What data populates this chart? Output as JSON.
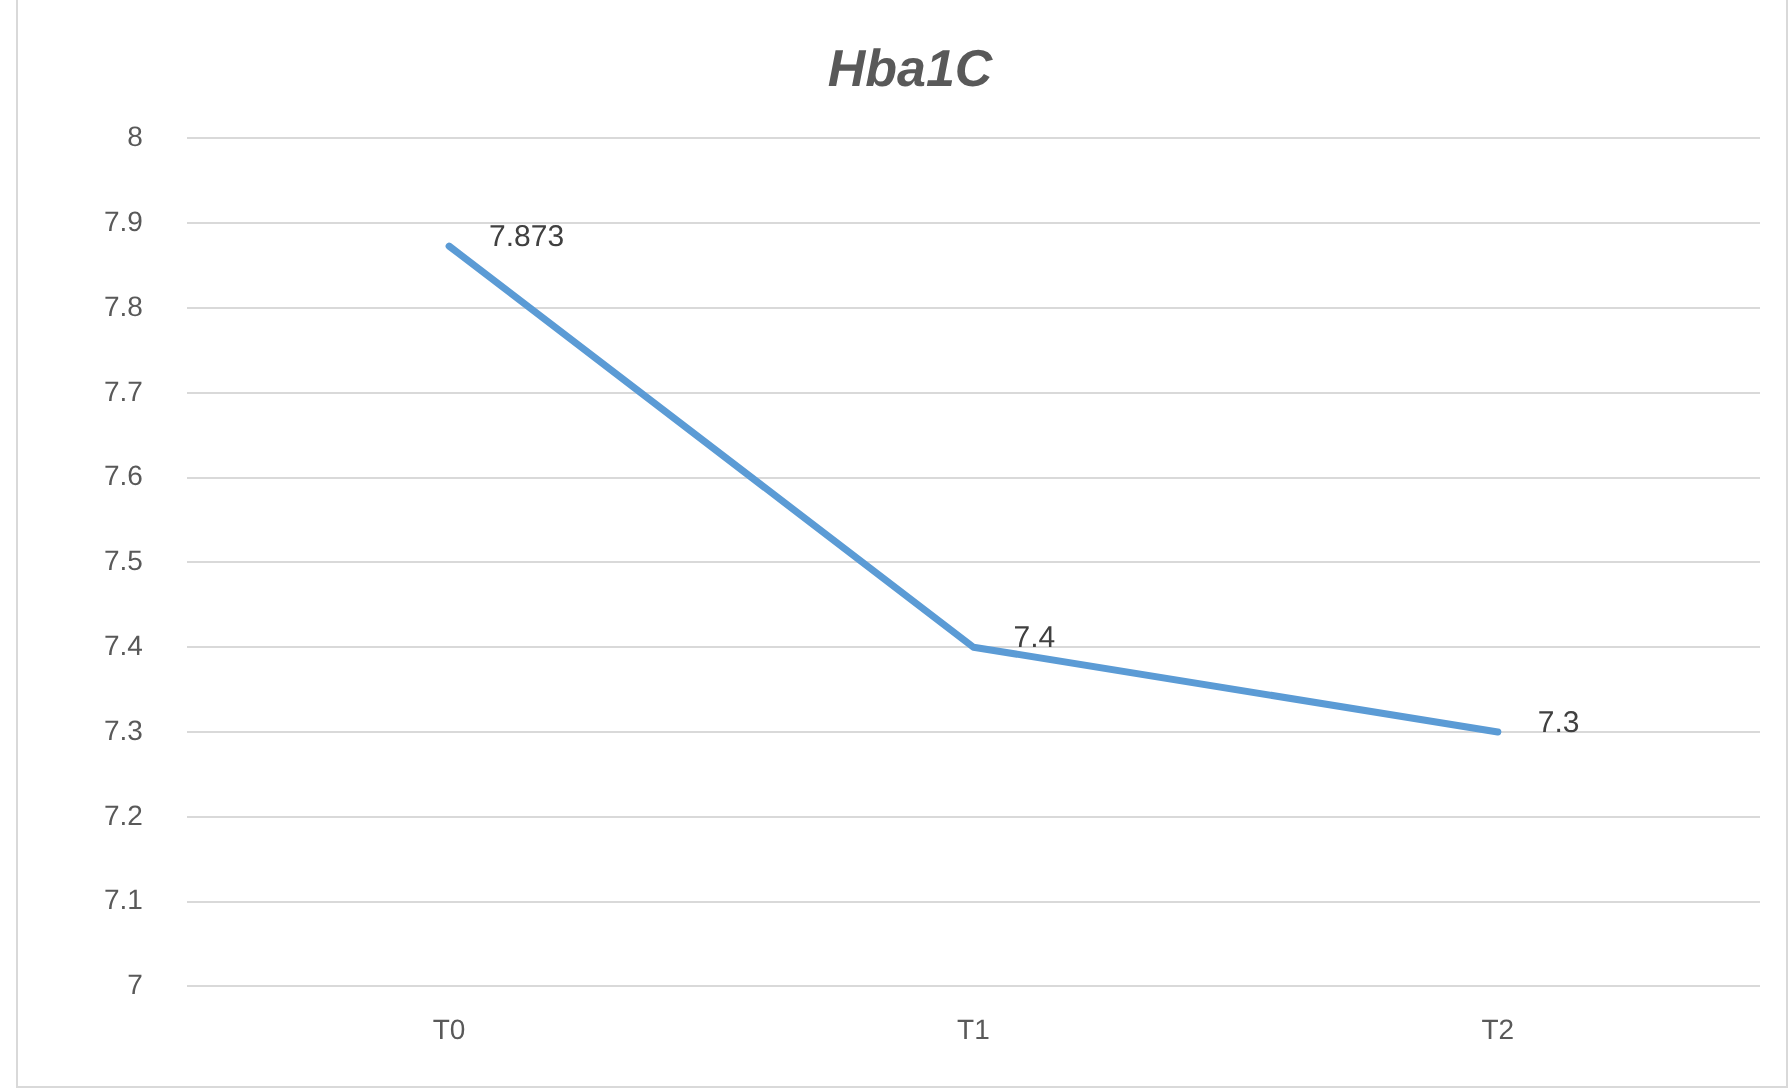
{
  "chart_data": {
    "type": "line",
    "title": "Hba1C",
    "categories": [
      "T0",
      "T1",
      "T2"
    ],
    "series": [
      {
        "color": "#5b9bd5",
        "values": [
          7.873,
          7.4,
          7.3
        ]
      }
    ],
    "ylim": [
      7,
      8
    ],
    "yticks": [
      7,
      7.1,
      7.2,
      7.3,
      7.4,
      7.5,
      7.6,
      7.7,
      7.8,
      7.9,
      8
    ],
    "grid": "y",
    "legend": false,
    "marker": "none",
    "line_style": "solid",
    "data_labels": true
  }
}
